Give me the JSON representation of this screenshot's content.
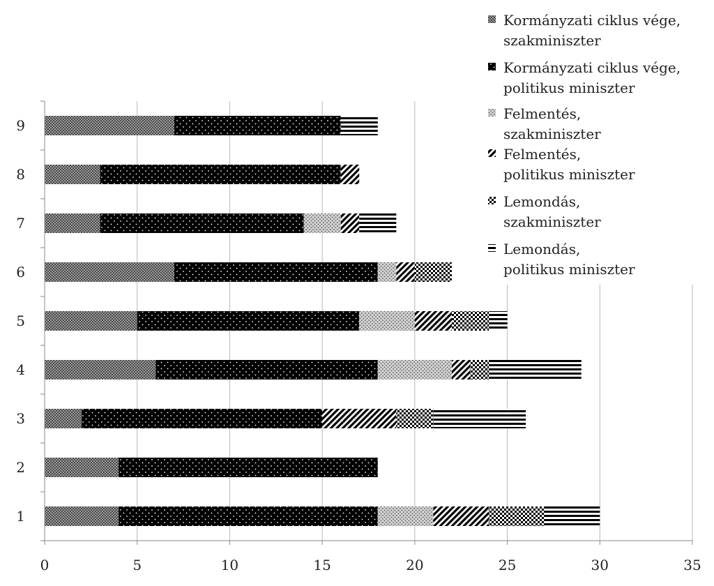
{
  "chart_data": {
    "type": "bar",
    "orientation": "horizontal",
    "stacked": true,
    "title": "",
    "xlabel": "",
    "ylabel": "",
    "xlim": [
      0,
      35
    ],
    "x_ticks": [
      0,
      5,
      10,
      15,
      20,
      25,
      30,
      35
    ],
    "grid": "vertical",
    "legend_position": "top-right",
    "categories": [
      "1",
      "2",
      "3",
      "4",
      "5",
      "6",
      "7",
      "8",
      "9"
    ],
    "series": [
      {
        "name": "Kormányzati ciklus vége, szakminiszter",
        "pattern": "crosshatch-gray",
        "values": [
          4,
          4,
          2,
          6,
          5,
          7,
          3,
          3,
          7
        ]
      },
      {
        "name": "Kormányzati ciklus vége, politikus miniszter",
        "pattern": "black-dots",
        "values": [
          14,
          14,
          13,
          12,
          12,
          11,
          11,
          13,
          9
        ]
      },
      {
        "name": "Felmentés, szakminiszter",
        "pattern": "gray-dots",
        "values": [
          3,
          0,
          0,
          4,
          3,
          1,
          2,
          0,
          0
        ]
      },
      {
        "name": "Felmentés, politikus miniszter",
        "pattern": "diagonal",
        "values": [
          3,
          0,
          4,
          1,
          2,
          1,
          1,
          1,
          0
        ]
      },
      {
        "name": "Lemondás, szakminiszter",
        "pattern": "checker",
        "values": [
          3,
          0,
          2,
          1,
          2,
          2,
          0,
          0,
          0
        ]
      },
      {
        "name": "Lemondás, politikus miniszter",
        "pattern": "horizontal-lines",
        "values": [
          3,
          0,
          5,
          5,
          1,
          0,
          2,
          0,
          2
        ]
      }
    ]
  }
}
